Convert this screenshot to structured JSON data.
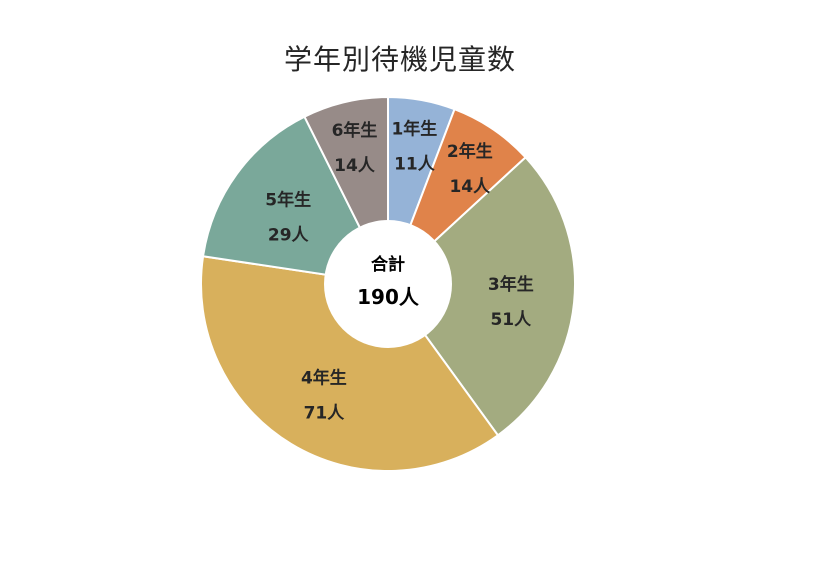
{
  "chart_data": {
    "type": "pie",
    "title": "学年別待機児童数",
    "categories": [
      "1年生",
      "2年生",
      "3年生",
      "4年生",
      "5年生",
      "6年生"
    ],
    "values": [
      11,
      14,
      51,
      71,
      29,
      14
    ],
    "value_labels": [
      "11人",
      "14人",
      "51人",
      "71人",
      "29人",
      "14人"
    ],
    "colors": [
      "#95b3d7",
      "#e0834a",
      "#a3ab80",
      "#d8b05c",
      "#7aa89a",
      "#978b88"
    ],
    "donut": true,
    "center_label": {
      "title": "合計",
      "value": "190人"
    },
    "legend": "none"
  }
}
